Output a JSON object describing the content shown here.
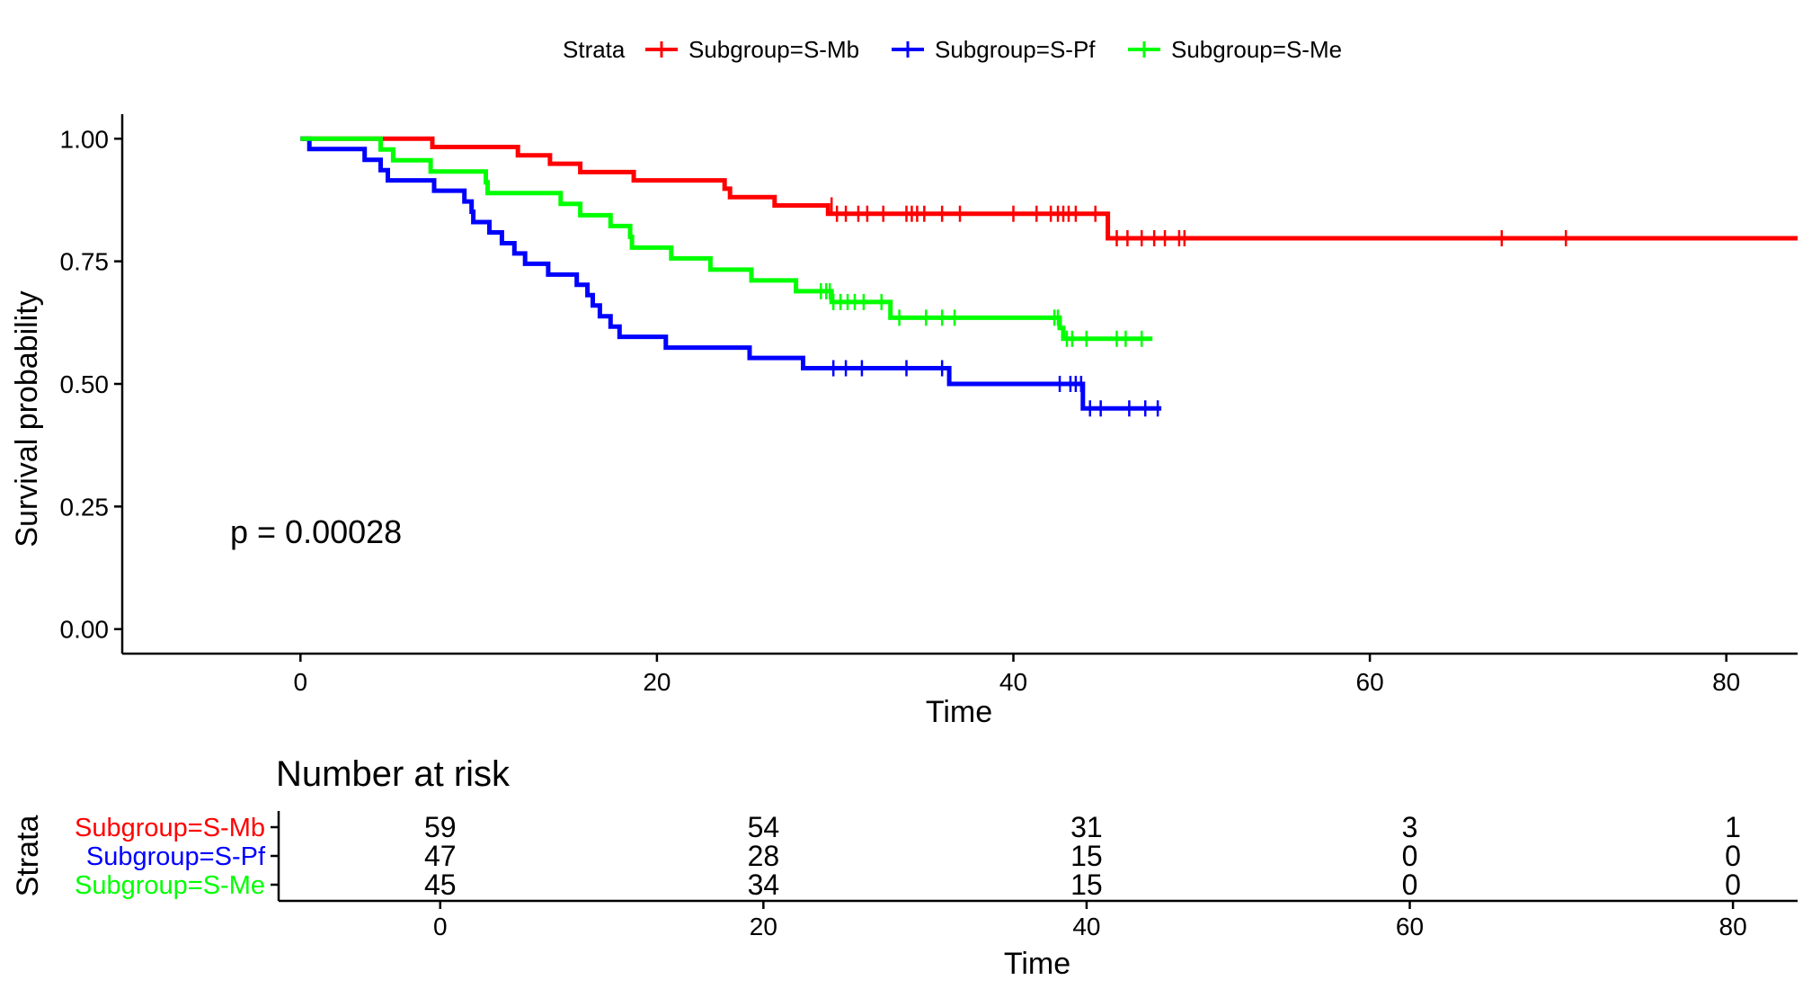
{
  "legend": {
    "title": "Strata",
    "items": [
      {
        "label": "Subgroup=S-Mb",
        "color": "#ff0000"
      },
      {
        "label": "Subgroup=S-Pf",
        "color": "#0000ff"
      },
      {
        "label": "Subgroup=S-Me",
        "color": "#00ff00"
      }
    ]
  },
  "chart_data": [
    {
      "type": "line",
      "subtype": "kaplan-meier step",
      "ylabel": "Survival probability",
      "xlabel": "Time",
      "xlim": [
        -10,
        84
      ],
      "ylim": [
        -0.05,
        1.05
      ],
      "xticks": [
        0,
        20,
        40,
        60,
        80
      ],
      "yticks": [
        "0.00",
        "0.25",
        "0.50",
        "0.75",
        "1.00"
      ],
      "annotation": "p = 0.00028",
      "series": [
        {
          "name": "Subgroup=S-Mb",
          "color": "#ff0000",
          "steps": [
            [
              0,
              1.0
            ],
            [
              7.4,
              0.983
            ],
            [
              12.2,
              0.966
            ],
            [
              14.0,
              0.949
            ],
            [
              15.7,
              0.932
            ],
            [
              18.7,
              0.915
            ],
            [
              23.8,
              0.898
            ],
            [
              24.1,
              0.881
            ],
            [
              26.6,
              0.864
            ],
            [
              29.6,
              0.847
            ],
            [
              45.3,
              0.797
            ],
            [
              84,
              0.797
            ]
          ],
          "censors": [
            [
              29.8,
              0.864
            ],
            [
              30.1,
              0.847
            ],
            [
              30.6,
              0.847
            ],
            [
              31.3,
              0.847
            ],
            [
              31.8,
              0.847
            ],
            [
              32.7,
              0.847
            ],
            [
              34.0,
              0.847
            ],
            [
              34.3,
              0.847
            ],
            [
              34.6,
              0.847
            ],
            [
              35.0,
              0.847
            ],
            [
              36.0,
              0.847
            ],
            [
              37.0,
              0.847
            ],
            [
              40.0,
              0.847
            ],
            [
              41.3,
              0.847
            ],
            [
              42.1,
              0.847
            ],
            [
              42.5,
              0.847
            ],
            [
              42.8,
              0.847
            ],
            [
              43.1,
              0.847
            ],
            [
              43.5,
              0.847
            ],
            [
              44.6,
              0.847
            ],
            [
              45.8,
              0.797
            ],
            [
              46.4,
              0.797
            ],
            [
              47.2,
              0.797
            ],
            [
              47.9,
              0.797
            ],
            [
              48.5,
              0.797
            ],
            [
              49.3,
              0.797
            ],
            [
              49.6,
              0.797
            ],
            [
              67.4,
              0.797
            ],
            [
              71.0,
              0.797
            ]
          ]
        },
        {
          "name": "Subgroup=S-Pf",
          "color": "#0000ff",
          "steps": [
            [
              0,
              1.0
            ],
            [
              0.5,
              0.979
            ],
            [
              3.6,
              0.957
            ],
            [
              4.5,
              0.936
            ],
            [
              4.9,
              0.915
            ],
            [
              7.5,
              0.894
            ],
            [
              9.2,
              0.872
            ],
            [
              9.6,
              0.851
            ],
            [
              9.7,
              0.83
            ],
            [
              10.6,
              0.809
            ],
            [
              11.3,
              0.787
            ],
            [
              12.0,
              0.766
            ],
            [
              12.6,
              0.745
            ],
            [
              13.9,
              0.723
            ],
            [
              15.5,
              0.702
            ],
            [
              16.1,
              0.681
            ],
            [
              16.4,
              0.66
            ],
            [
              16.8,
              0.638
            ],
            [
              17.4,
              0.617
            ],
            [
              17.9,
              0.596
            ],
            [
              20.5,
              0.574
            ],
            [
              25.2,
              0.553
            ],
            [
              28.2,
              0.532
            ],
            [
              36.4,
              0.5
            ],
            [
              43.9,
              0.45
            ],
            [
              48.3,
              0.45
            ]
          ],
          "censors": [
            [
              29.9,
              0.532
            ],
            [
              30.6,
              0.532
            ],
            [
              31.5,
              0.532
            ],
            [
              34.0,
              0.532
            ],
            [
              36.0,
              0.532
            ],
            [
              42.6,
              0.5
            ],
            [
              43.2,
              0.5
            ],
            [
              43.5,
              0.5
            ],
            [
              43.8,
              0.5
            ],
            [
              44.3,
              0.45
            ],
            [
              44.9,
              0.45
            ],
            [
              46.5,
              0.45
            ],
            [
              47.4,
              0.45
            ],
            [
              48.1,
              0.45
            ]
          ]
        },
        {
          "name": "Subgroup=S-Me",
          "color": "#00ff00",
          "steps": [
            [
              0,
              1.0
            ],
            [
              4.5,
              0.978
            ],
            [
              5.2,
              0.956
            ],
            [
              7.3,
              0.933
            ],
            [
              10.4,
              0.911
            ],
            [
              10.5,
              0.889
            ],
            [
              14.6,
              0.867
            ],
            [
              15.7,
              0.844
            ],
            [
              17.4,
              0.822
            ],
            [
              18.5,
              0.8
            ],
            [
              18.6,
              0.778
            ],
            [
              20.8,
              0.756
            ],
            [
              23.0,
              0.733
            ],
            [
              25.3,
              0.711
            ],
            [
              27.8,
              0.689
            ],
            [
              29.8,
              0.667
            ],
            [
              33.1,
              0.635
            ],
            [
              42.6,
              0.614
            ],
            [
              42.8,
              0.592
            ],
            [
              47.8,
              0.592
            ]
          ],
          "censors": [
            [
              29.2,
              0.689
            ],
            [
              29.5,
              0.689
            ],
            [
              29.7,
              0.689
            ],
            [
              29.9,
              0.667
            ],
            [
              30.3,
              0.667
            ],
            [
              30.7,
              0.667
            ],
            [
              31.1,
              0.667
            ],
            [
              31.6,
              0.667
            ],
            [
              32.6,
              0.667
            ],
            [
              33.6,
              0.635
            ],
            [
              35.1,
              0.635
            ],
            [
              36.0,
              0.635
            ],
            [
              36.7,
              0.635
            ],
            [
              42.3,
              0.635
            ],
            [
              42.5,
              0.635
            ],
            [
              43.0,
              0.592
            ],
            [
              43.3,
              0.592
            ],
            [
              44.1,
              0.592
            ],
            [
              45.8,
              0.592
            ],
            [
              46.3,
              0.592
            ],
            [
              47.2,
              0.592
            ]
          ]
        }
      ]
    },
    {
      "type": "table",
      "title": "Number at risk",
      "ylabel": "Strata",
      "xlabel": "Time",
      "xlim": [
        -10,
        84
      ],
      "xticks": [
        0,
        20,
        40,
        60,
        80
      ],
      "rows": [
        {
          "label": "Subgroup=S-Mb",
          "color": "#ff0000",
          "values": [
            59,
            54,
            31,
            3,
            1
          ]
        },
        {
          "label": "Subgroup=S-Pf",
          "color": "#0000ff",
          "values": [
            47,
            28,
            15,
            0,
            0
          ]
        },
        {
          "label": "Subgroup=S-Me",
          "color": "#00ff00",
          "values": [
            45,
            34,
            15,
            0,
            0
          ]
        }
      ]
    }
  ]
}
